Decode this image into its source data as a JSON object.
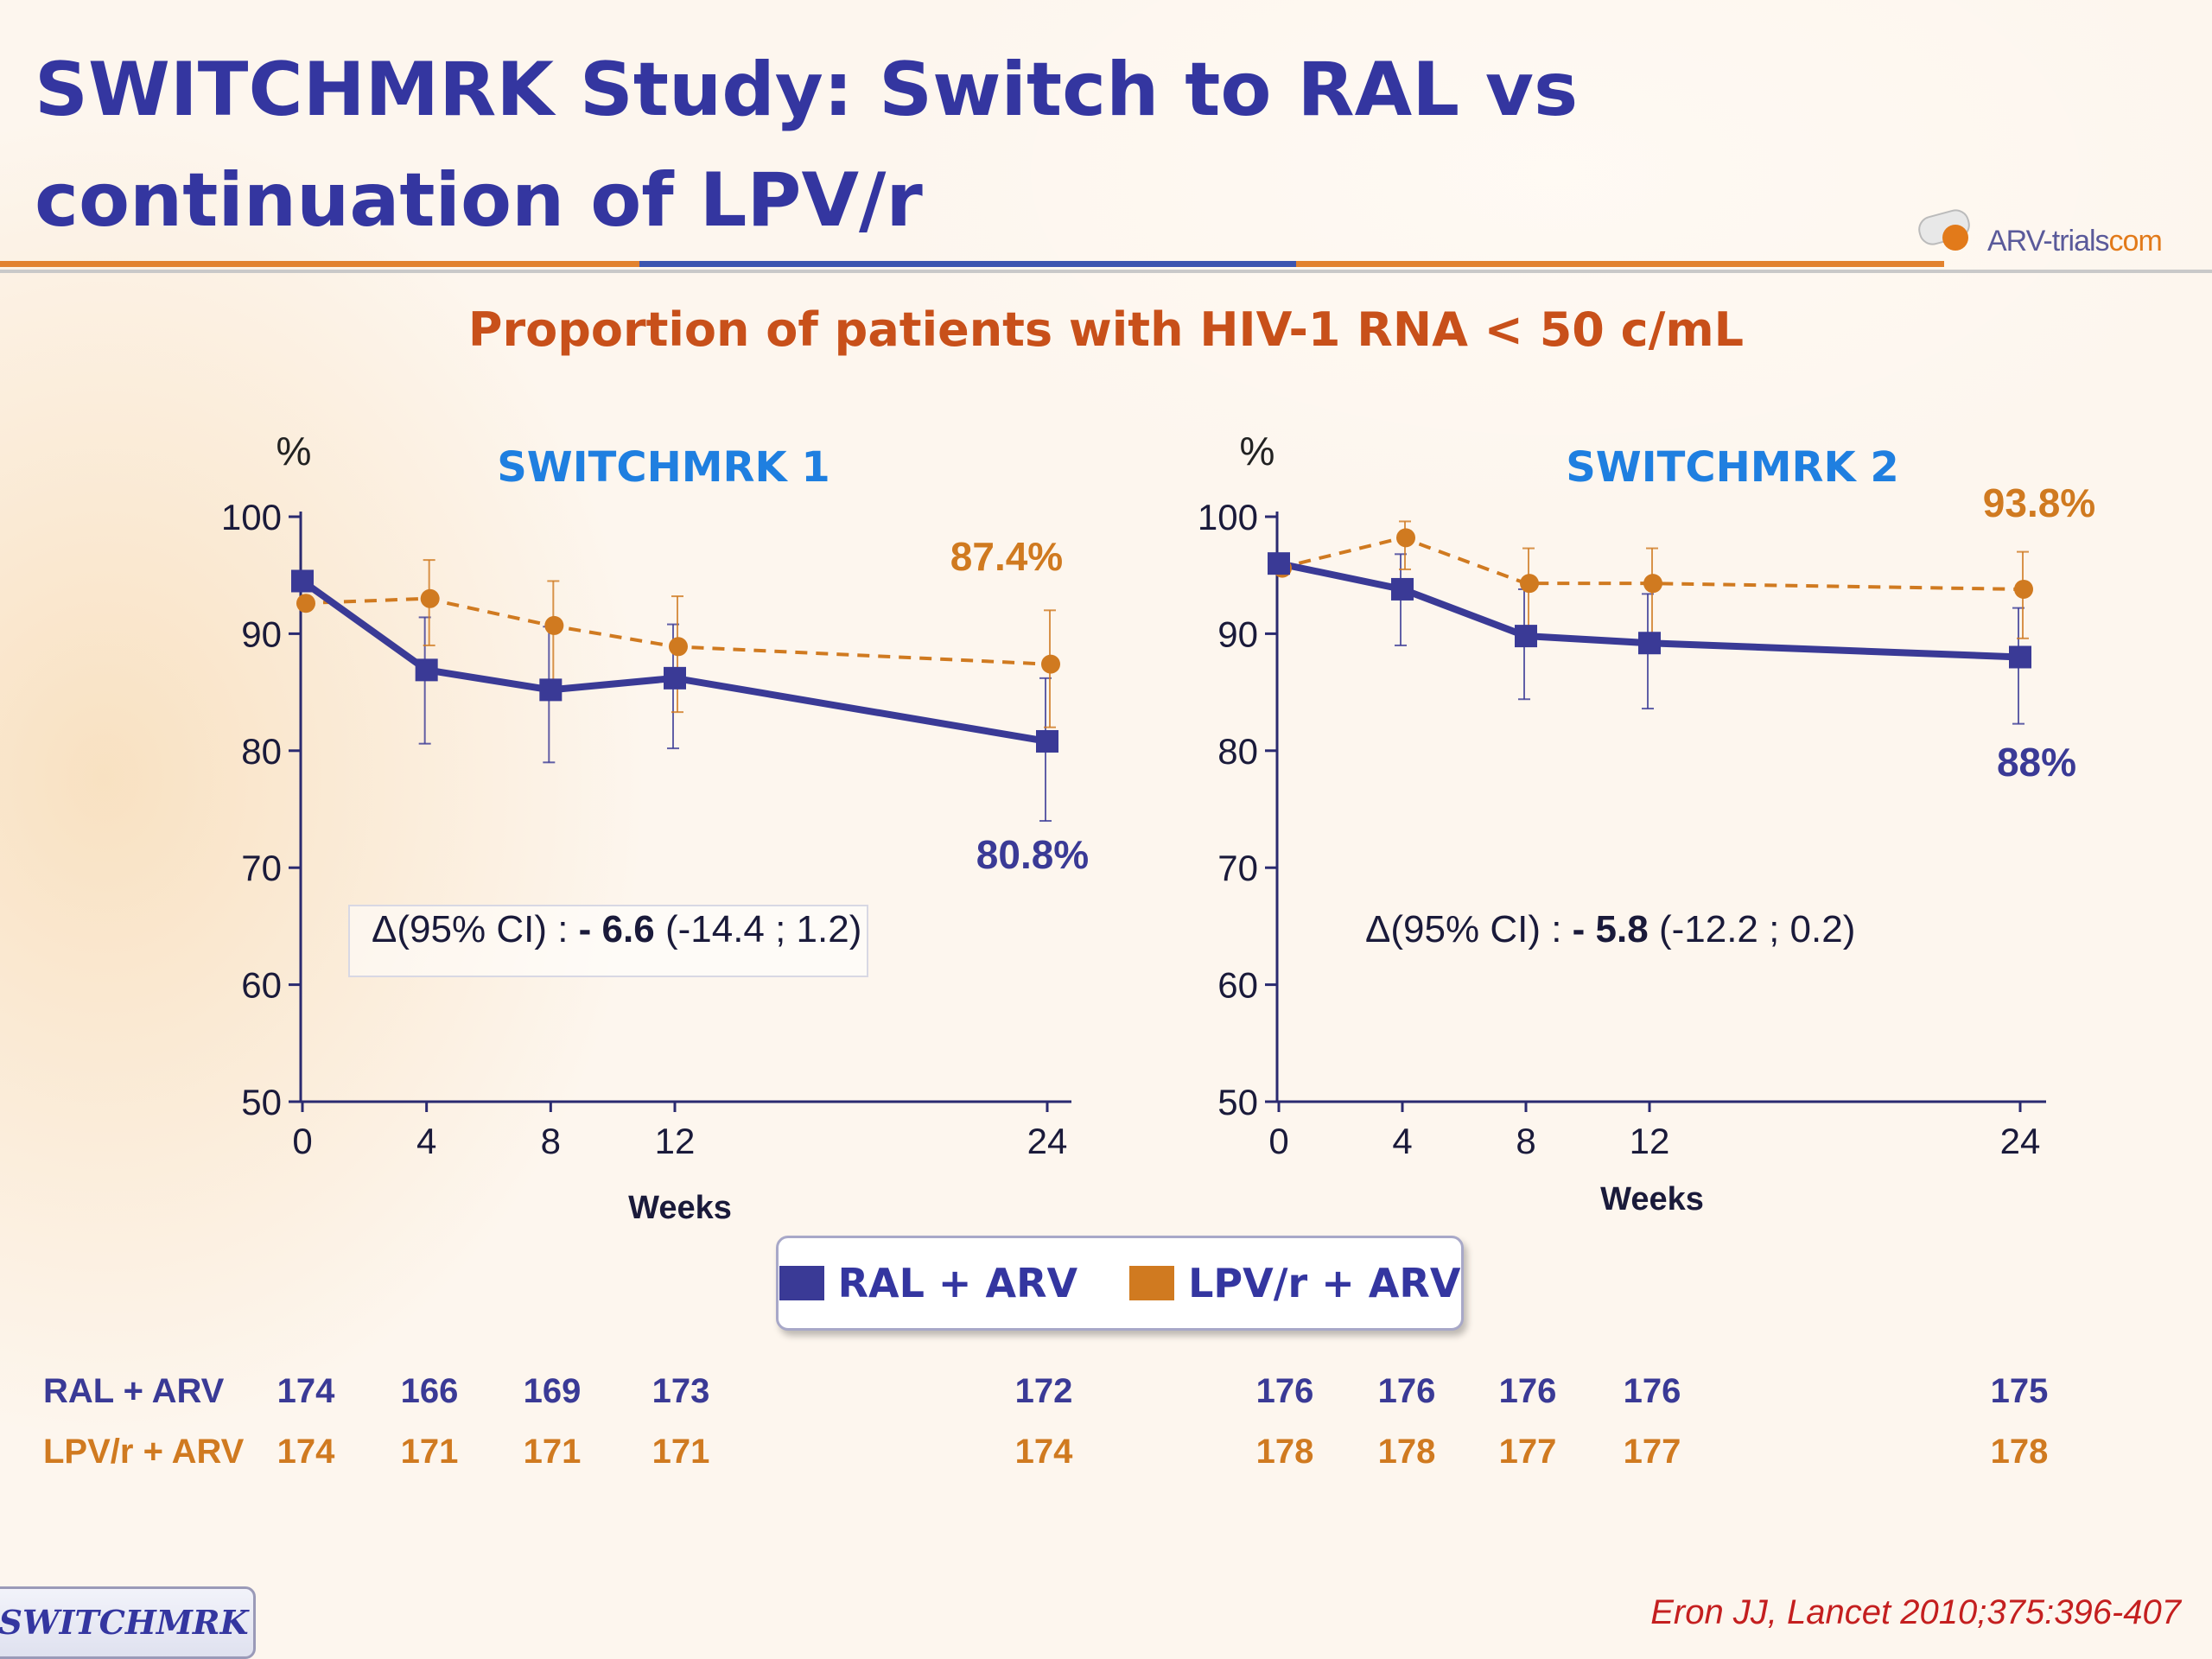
{
  "slide": {
    "title": "SWITCHMRK Study: Switch to RAL vs continuation of LPV/r",
    "subtitle": "Proportion of patients with HIV-1 RNA < 50 c/mL",
    "logo_text": "ARV-trials",
    "logo_suffix": "com",
    "tag": "SWITCHMRK",
    "citation": "Eron JJ, Lancet 2010;375:396-407"
  },
  "colors": {
    "title": "#3436a0",
    "ral": "#3a3a96",
    "lpv": "#d07a20",
    "subtitle": "#c8501a",
    "panel_title": "#1f7fe0"
  },
  "legend": [
    {
      "label": "RAL + ARV",
      "color": "#3a3a96"
    },
    {
      "label": "LPV/r + ARV",
      "color": "#d07a20"
    }
  ],
  "chart_data": [
    {
      "type": "line",
      "title": "SWITCHMRK 1",
      "ylabel": "%",
      "xlabel": "Weeks",
      "ylim": [
        50,
        100
      ],
      "yticks": [
        50,
        60,
        70,
        80,
        90,
        100
      ],
      "x": [
        0,
        4,
        8,
        12,
        24
      ],
      "series": [
        {
          "name": "RAL + ARV",
          "values": [
            94.5,
            86.9,
            85.2,
            86.2,
            80.8
          ],
          "err_low": [
            94.5,
            80.6,
            79.0,
            80.2,
            74.0
          ],
          "err_high": [
            94.5,
            91.4,
            90.6,
            90.8,
            86.2
          ]
        },
        {
          "name": "LPV/r + ARV",
          "values": [
            92.6,
            93.0,
            90.7,
            88.9,
            87.4
          ],
          "err_low": [
            92.6,
            89.0,
            85.8,
            83.3,
            82.0
          ],
          "err_high": [
            92.6,
            96.3,
            94.5,
            93.2,
            92.0
          ]
        }
      ],
      "end_labels": {
        "ral": "80.8%",
        "lpv": "87.4%"
      },
      "annotation": {
        "prefix": "Δ(95% CI) : ",
        "bold": "- 6.6",
        "suffix": " (-14.4 ; 1.2)"
      },
      "n_at_risk": {
        "ral": [
          "174",
          "166",
          "169",
          "173",
          "172"
        ],
        "lpv": [
          "174",
          "171",
          "171",
          "171",
          "174"
        ]
      }
    },
    {
      "type": "line",
      "title": "SWITCHMRK 2",
      "ylabel": "%",
      "xlabel": "Weeks",
      "ylim": [
        50,
        100
      ],
      "yticks": [
        50,
        60,
        70,
        80,
        90,
        100
      ],
      "x": [
        0,
        4,
        8,
        12,
        24
      ],
      "series": [
        {
          "name": "RAL + ARV",
          "values": [
            96.0,
            93.8,
            89.8,
            89.2,
            88.0
          ],
          "err_low": [
            96.0,
            89.0,
            84.4,
            83.6,
            82.3
          ],
          "err_high": [
            96.0,
            96.8,
            93.8,
            93.4,
            92.2
          ]
        },
        {
          "name": "LPV/r + ARV",
          "values": [
            95.6,
            98.2,
            94.3,
            94.3,
            93.8
          ],
          "err_low": [
            95.6,
            95.5,
            90.0,
            90.0,
            89.6
          ],
          "err_high": [
            95.6,
            99.6,
            97.3,
            97.3,
            97.0
          ]
        }
      ],
      "end_labels": {
        "ral": "88%",
        "lpv": "93.8%"
      },
      "annotation": {
        "prefix": "Δ(95% CI) : ",
        "bold": "- 5.8",
        "suffix": " (-12.2 ; 0.2)"
      },
      "n_at_risk": {
        "ral": [
          "176",
          "176",
          "176",
          "176",
          "175"
        ],
        "lpv": [
          "178",
          "178",
          "177",
          "177",
          "178"
        ]
      }
    }
  ],
  "n_table": {
    "ral_label": "RAL + ARV",
    "lpv_label": "LPV/r + ARV"
  }
}
